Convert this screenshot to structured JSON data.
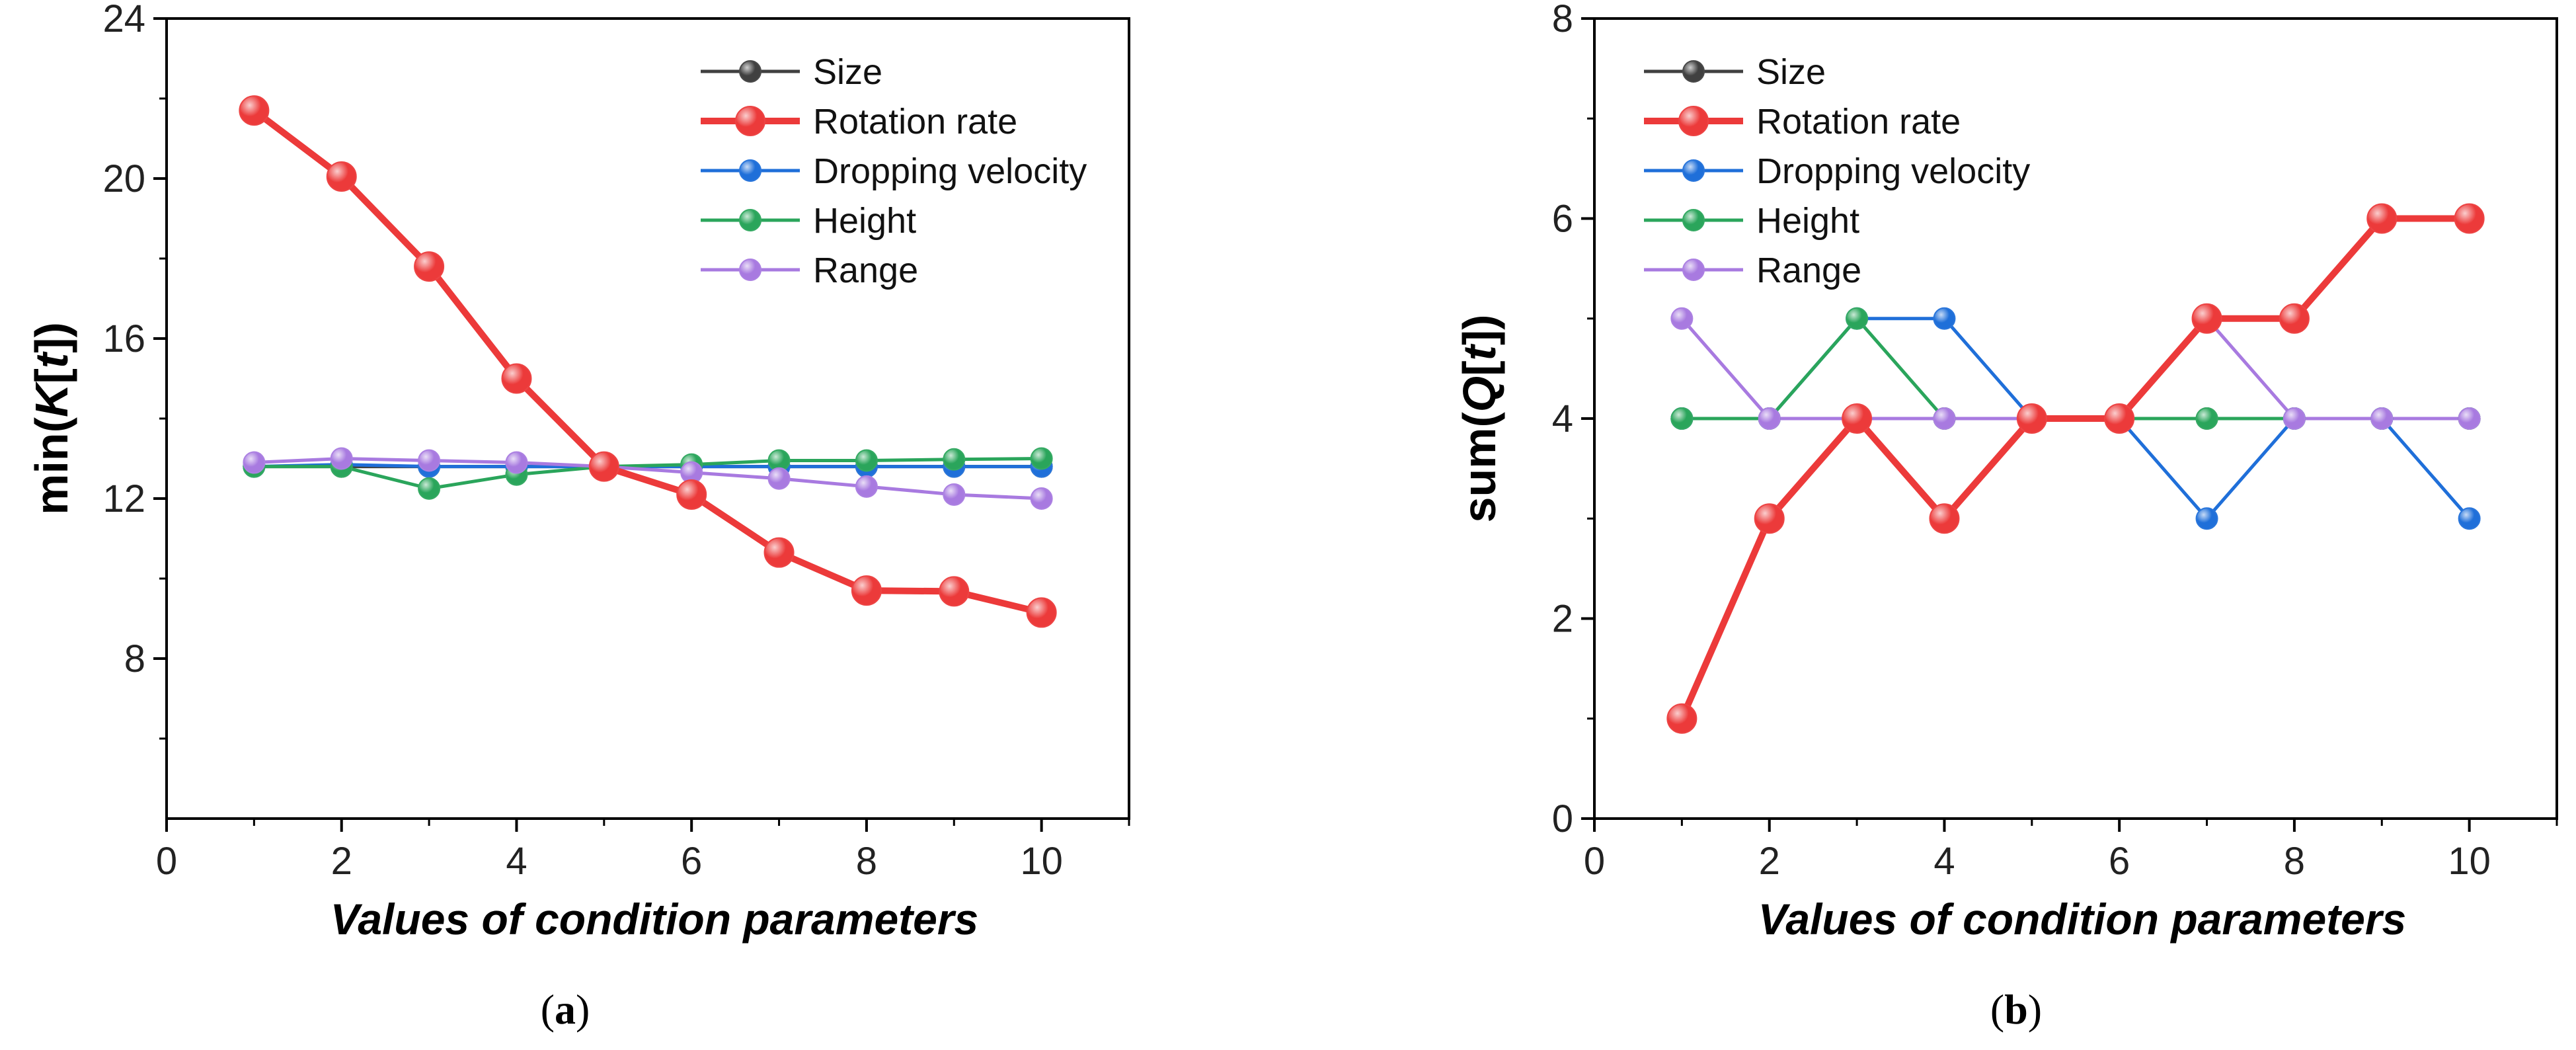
{
  "chart_data": [
    {
      "type": "line",
      "caption": "(a)",
      "xlabel": "Values of condition parameters",
      "ylabel_prefix": "min(",
      "ylabel_italic": "K",
      "ylabel_mid": "[",
      "ylabel_italic2": "t",
      "ylabel_suffix": "])",
      "xlim": [
        0,
        11
      ],
      "ylim": [
        4,
        24
      ],
      "xticks": [
        0,
        2,
        4,
        6,
        8,
        10
      ],
      "yticks": [
        8,
        12,
        16,
        20,
        24
      ],
      "legend_position": "top-right",
      "x": [
        1,
        2,
        3,
        4,
        5,
        6,
        7,
        8,
        9,
        10
      ],
      "series": [
        {
          "name": "Size",
          "color": "#404040",
          "values": [
            12.8,
            12.8,
            12.8,
            12.8,
            12.8,
            12.8,
            12.8,
            12.8,
            12.8,
            12.8
          ]
        },
        {
          "name": "Dropping velocity",
          "color": "#1f6fd9",
          "values": [
            12.8,
            12.85,
            12.8,
            12.8,
            12.8,
            12.8,
            12.8,
            12.8,
            12.8,
            12.8
          ]
        },
        {
          "name": "Height",
          "color": "#2aa55b",
          "values": [
            12.8,
            12.8,
            12.25,
            12.6,
            12.8,
            12.85,
            12.95,
            12.95,
            12.98,
            13.0
          ]
        },
        {
          "name": "Range",
          "color": "#a87ae0",
          "values": [
            12.9,
            13.0,
            12.95,
            12.9,
            12.8,
            12.65,
            12.5,
            12.3,
            12.1,
            12.0
          ]
        },
        {
          "name": "Rotation rate",
          "color": "#ec3a3a",
          "values": [
            21.7,
            20.05,
            17.8,
            15.0,
            12.8,
            12.1,
            10.65,
            9.7,
            9.68,
            9.15
          ]
        }
      ],
      "legend_order": [
        "Size",
        "Rotation rate",
        "Dropping velocity",
        "Height",
        "Range"
      ]
    },
    {
      "type": "line",
      "caption": "(b)",
      "xlabel": "Values of condition parameters",
      "ylabel_prefix": "sum(",
      "ylabel_italic": "Q",
      "ylabel_mid": "[",
      "ylabel_italic2": "t",
      "ylabel_suffix": "])",
      "xlim": [
        0,
        11
      ],
      "ylim": [
        0,
        8
      ],
      "xticks": [
        0,
        2,
        4,
        6,
        8,
        10
      ],
      "yticks": [
        0,
        2,
        4,
        6,
        8
      ],
      "legend_position": "top-left",
      "x": [
        1,
        2,
        3,
        4,
        5,
        6,
        7,
        8,
        9,
        10
      ],
      "series": [
        {
          "name": "Size",
          "color": "#404040",
          "values": [
            4,
            4,
            4,
            4,
            4,
            4,
            4,
            4,
            4,
            4
          ]
        },
        {
          "name": "Dropping velocity",
          "color": "#1f6fd9",
          "values": [
            4,
            4,
            5,
            5,
            4,
            4,
            3,
            4,
            4,
            3
          ]
        },
        {
          "name": "Height",
          "color": "#2aa55b",
          "values": [
            4,
            4,
            5,
            4,
            4,
            4,
            4,
            4,
            4,
            4
          ]
        },
        {
          "name": "Range",
          "color": "#a87ae0",
          "values": [
            5,
            4,
            4,
            4,
            4,
            4,
            5,
            4,
            4,
            4
          ]
        },
        {
          "name": "Rotation rate",
          "color": "#ec3a3a",
          "values": [
            1,
            3,
            4,
            3,
            4,
            4,
            5,
            5,
            6,
            6
          ]
        }
      ],
      "legend_order": [
        "Size",
        "Rotation rate",
        "Dropping velocity",
        "Height",
        "Range"
      ]
    }
  ]
}
